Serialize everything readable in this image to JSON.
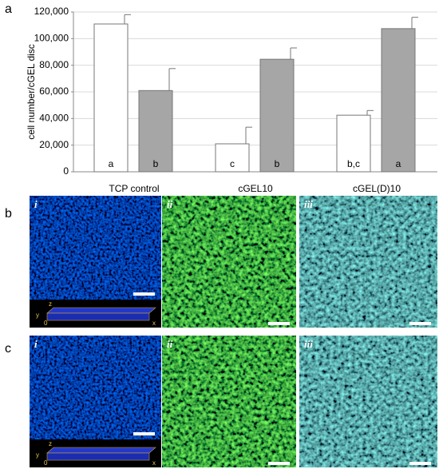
{
  "chart_data": {
    "type": "bar",
    "ylabel": "cell number/cGEL disc",
    "categories": [
      "TCP control",
      "cGEL10",
      "cGEL(D)10"
    ],
    "series": [
      {
        "color": "#ffffff",
        "values": [
          111000,
          21000,
          42500
        ],
        "errors": [
          7000,
          12500,
          3500
        ],
        "annotations": [
          "a",
          "c",
          "b,c"
        ]
      },
      {
        "color": "#a6a6a6",
        "values": [
          61000,
          84500,
          107500
        ],
        "errors": [
          16500,
          8500,
          8500
        ],
        "annotations": [
          "b",
          "b",
          "a"
        ]
      }
    ],
    "ylim": [
      0,
      120000
    ],
    "yticks": [
      0,
      {
        "value": 20000,
        "label": "20,000"
      },
      {
        "value": 40000,
        "label": "40,000"
      },
      {
        "value": 60000,
        "label": "60,000"
      },
      {
        "value": 80000,
        "label": "80,000"
      },
      {
        "value": 100000,
        "label": "100,000"
      },
      {
        "value": 120000,
        "label": "120,000"
      }
    ],
    "grid": true
  },
  "panel_labels": [
    "a",
    "b",
    "c"
  ],
  "image_labels": [
    "i",
    "ii",
    "iii"
  ],
  "inset_axis_labels": [
    "z",
    "y",
    "0",
    "x"
  ]
}
